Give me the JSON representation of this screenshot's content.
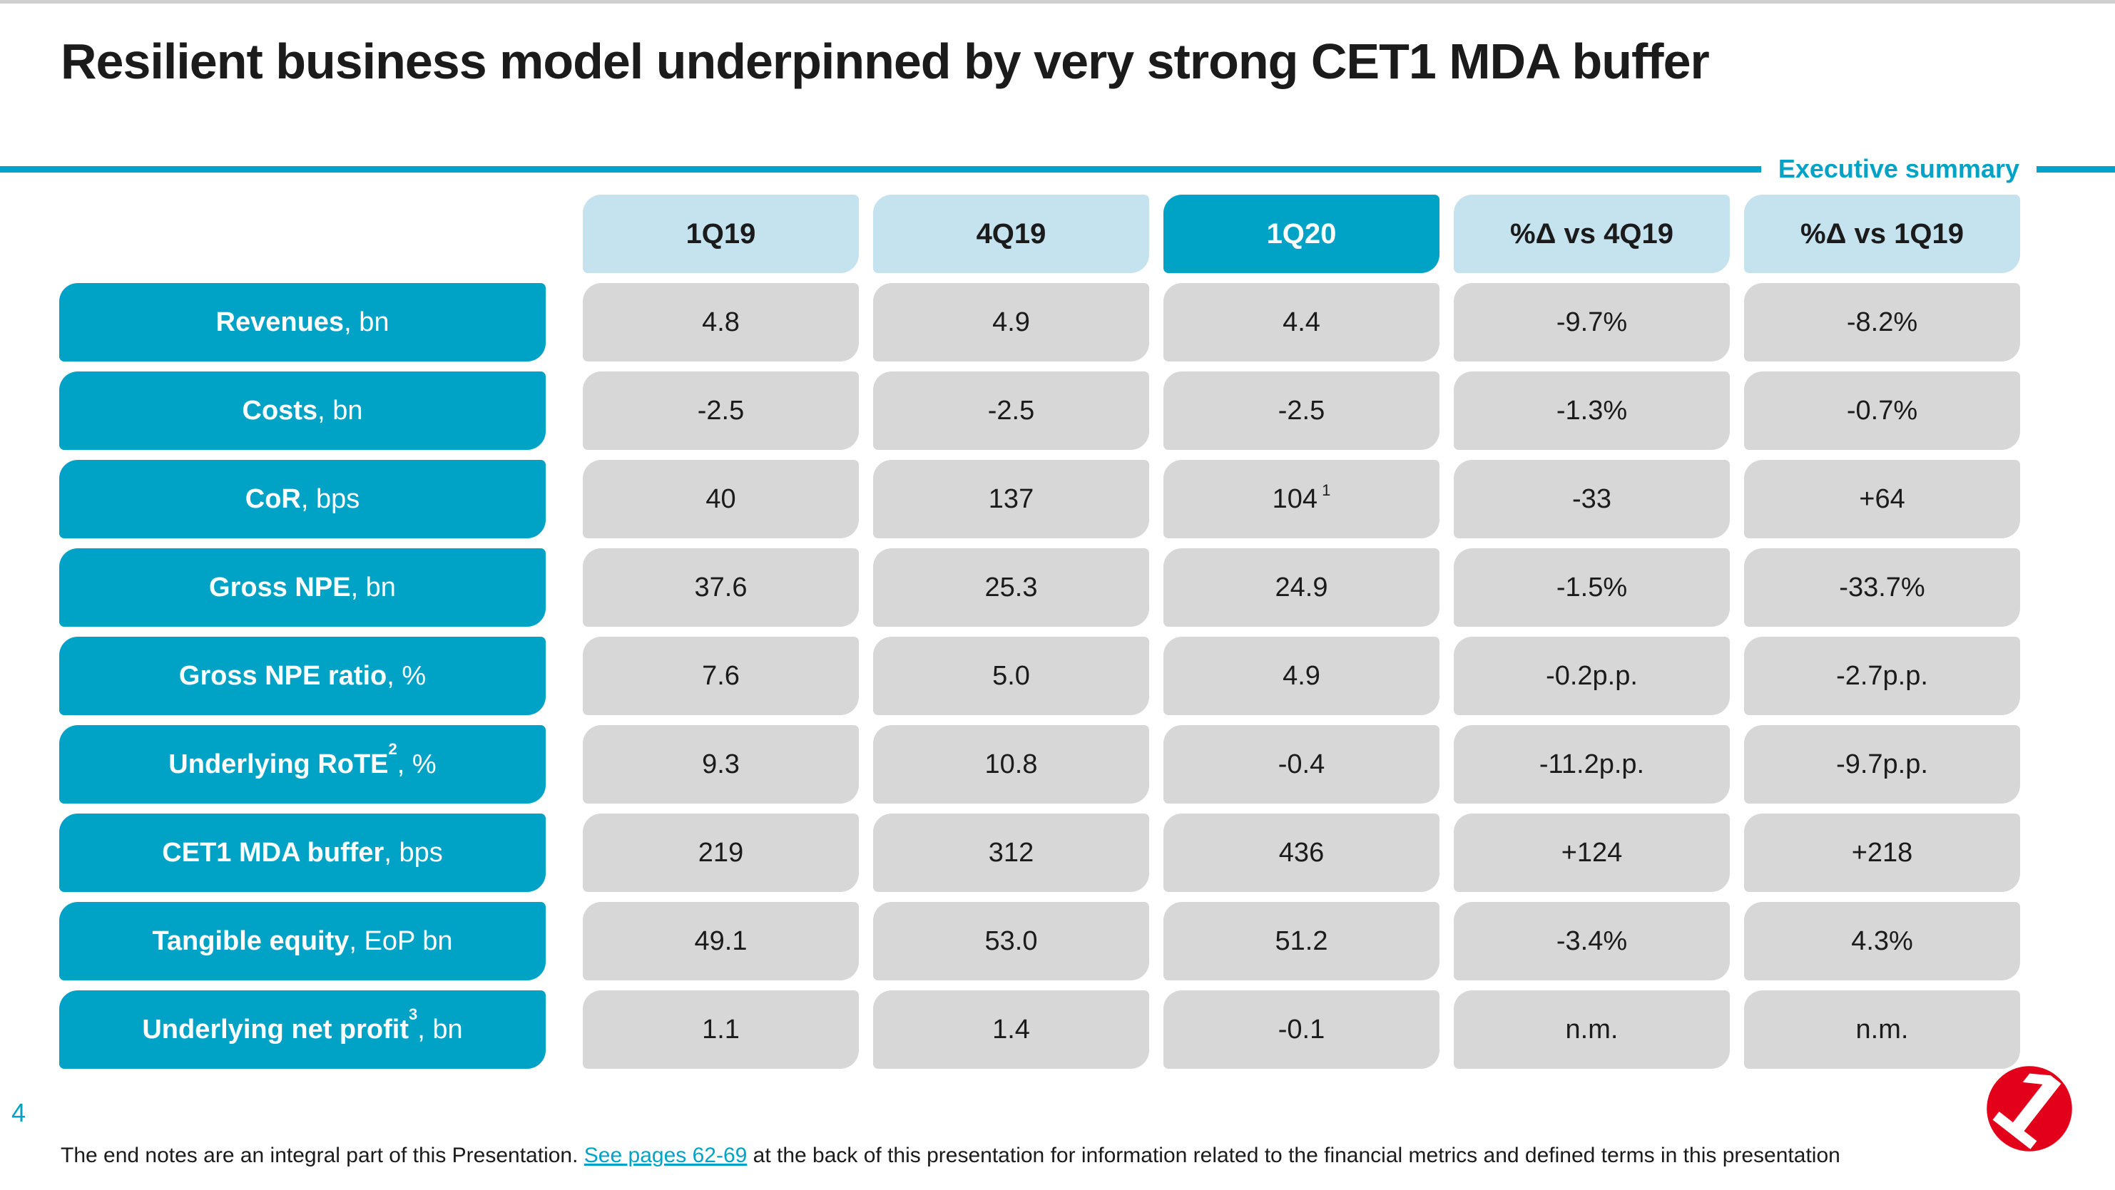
{
  "slide": {
    "title": "Resilient business model underpinned by very strong CET1 MDA buffer",
    "tag": "Executive summary",
    "page_number": "4",
    "footer": {
      "pre_link": "The end notes are an integral part of this Presentation. ",
      "link": "See pages 62-69",
      "post_link": " at the back of this presentation for information related to the financial metrics and defined terms in this presentation"
    },
    "logo_glyph": "1"
  },
  "colors": {
    "brand_cyan": "#00a3c6",
    "light_blue": "#c5e2ef",
    "cell_gray": "#d7d7d7",
    "logo_red": "#e2001a",
    "text_dark": "#1b1b1b"
  },
  "chart_data": {
    "type": "table",
    "title": "Resilient business model underpinned by very strong CET1 MDA buffer",
    "columns": [
      "1Q19",
      "4Q19",
      "1Q20",
      "%Δ vs 4Q19",
      "%Δ vs 1Q19"
    ],
    "highlight_column_index": 2,
    "rows": [
      {
        "name": "Revenues",
        "name_sup": "",
        "unit": ", bn",
        "values": [
          "4.8",
          "4.9",
          "4.4",
          "-9.7%",
          "-8.2%"
        ],
        "value_sups": [
          "",
          "",
          "",
          "",
          ""
        ]
      },
      {
        "name": "Costs",
        "name_sup": "",
        "unit": ", bn",
        "values": [
          "-2.5",
          "-2.5",
          "-2.5",
          "-1.3%",
          "-0.7%"
        ],
        "value_sups": [
          "",
          "",
          "",
          "",
          ""
        ]
      },
      {
        "name": "CoR",
        "name_sup": "",
        "unit": ", bps",
        "values": [
          "40",
          "137",
          "104",
          "-33",
          "+64"
        ],
        "value_sups": [
          "",
          "",
          "1",
          "",
          ""
        ]
      },
      {
        "name": "Gross NPE",
        "name_sup": "",
        "unit": ", bn",
        "values": [
          "37.6",
          "25.3",
          "24.9",
          "-1.5%",
          "-33.7%"
        ],
        "value_sups": [
          "",
          "",
          "",
          "",
          ""
        ]
      },
      {
        "name": "Gross NPE ratio",
        "name_sup": "",
        "unit": ", %",
        "values": [
          "7.6",
          "5.0",
          "4.9",
          "-0.2p.p.",
          "-2.7p.p."
        ],
        "value_sups": [
          "",
          "",
          "",
          "",
          ""
        ]
      },
      {
        "name": "Underlying RoTE",
        "name_sup": "2",
        "unit": ", %",
        "values": [
          "9.3",
          "10.8",
          "-0.4",
          "-11.2p.p.",
          "-9.7p.p."
        ],
        "value_sups": [
          "",
          "",
          "",
          "",
          ""
        ]
      },
      {
        "name": "CET1 MDA buffer",
        "name_sup": "",
        "unit": ", bps",
        "values": [
          "219",
          "312",
          "436",
          "+124",
          "+218"
        ],
        "value_sups": [
          "",
          "",
          "",
          "",
          ""
        ]
      },
      {
        "name": "Tangible equity",
        "name_sup": "",
        "unit": ", EoP bn",
        "values": [
          "49.1",
          "53.0",
          "51.2",
          "-3.4%",
          "4.3%"
        ],
        "value_sups": [
          "",
          "",
          "",
          "",
          ""
        ]
      },
      {
        "name": "Underlying net profit",
        "name_sup": "3",
        "unit": ", bn",
        "values": [
          "1.1",
          "1.4",
          "-0.1",
          "n.m.",
          "n.m."
        ],
        "value_sups": [
          "",
          "",
          "",
          "",
          ""
        ]
      }
    ]
  }
}
